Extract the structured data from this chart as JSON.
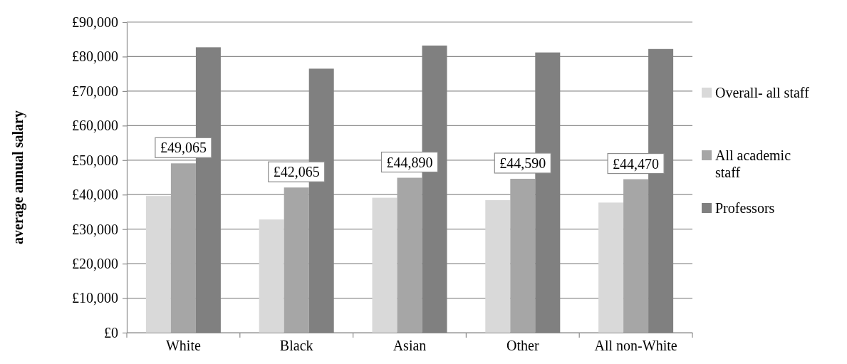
{
  "chart_data": {
    "type": "bar",
    "ylabel": "average annual salary",
    "categories": [
      "White",
      "Black",
      "Asian",
      "Other",
      "All non-White"
    ],
    "series": [
      {
        "name": "Overall- all staff",
        "color": "#d9d9d9",
        "values": [
          39600,
          32800,
          39100,
          38400,
          37700
        ]
      },
      {
        "name": "All academic staff",
        "color": "#a6a6a6",
        "values": [
          49065,
          42065,
          44890,
          44590,
          44470
        ],
        "value_labels": [
          "£49,065",
          "£42,065",
          "£44,890",
          "£44,590",
          "£44,470"
        ]
      },
      {
        "name": "Professors",
        "color": "#808080",
        "values": [
          82700,
          76500,
          83200,
          81200,
          82200
        ]
      }
    ],
    "ylim": [
      0,
      90000
    ],
    "yticks": [
      {
        "value": 0,
        "label": "£0"
      },
      {
        "value": 10000,
        "label": "£10,000"
      },
      {
        "value": 20000,
        "label": "£20,000"
      },
      {
        "value": 30000,
        "label": "£30,000"
      },
      {
        "value": 40000,
        "label": "£40,000"
      },
      {
        "value": 50000,
        "label": "£50,000"
      },
      {
        "value": 60000,
        "label": "£60,000"
      },
      {
        "value": 70000,
        "label": "£70,000"
      },
      {
        "value": 80000,
        "label": "£80,000"
      },
      {
        "value": 90000,
        "label": "£90,000"
      }
    ],
    "grid": "y",
    "legend": "right"
  }
}
